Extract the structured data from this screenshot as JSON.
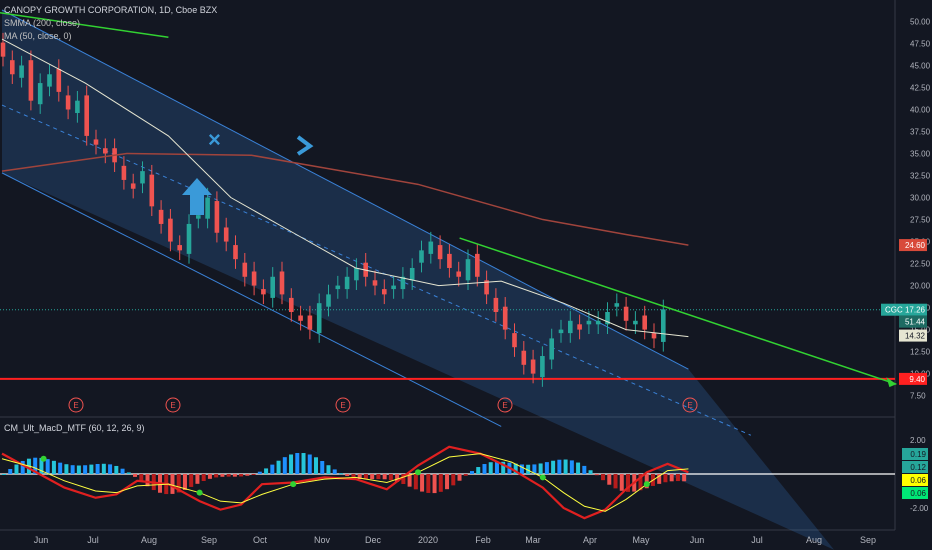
{
  "title": "CANOPY GROWTH CORPORATION, 1D, Cboe BZX",
  "indicators": [
    "SMMA (200, close)",
    "MA (50, close, 0)"
  ],
  "macd_label": "CM_Ult_MacD_MTF (60, 12, 26, 9)",
  "colors": {
    "background": "#131722",
    "up": "#26a69a",
    "down": "#ef5350",
    "smma": "#a0443c",
    "ma": "#e6e6d2",
    "channel": "#3a82d8",
    "trendline": "#32d232",
    "support": "#ff2020"
  },
  "chart_data": [
    {
      "type": "candlestick",
      "symbol": "CGC",
      "x_ticks": [
        "Jun",
        "Jul",
        "Aug",
        "Sep",
        "Oct",
        "Nov",
        "Dec",
        "2020",
        "Feb",
        "Mar",
        "Apr",
        "May",
        "Jun",
        "Jul",
        "Aug",
        "Sep"
      ],
      "y_ticks": [
        "50.00",
        "47.50",
        "45.00",
        "42.50",
        "40.00",
        "37.50",
        "35.00",
        "32.50",
        "30.00",
        "27.50",
        "25.00",
        "22.50",
        "20.00",
        "17.50",
        "15.00",
        "12.50",
        "10.00",
        "7.50"
      ],
      "ylim": [
        5.3,
        51.3
      ],
      "close_series": [
        [
          46,
          1
        ],
        [
          44,
          1
        ],
        [
          45,
          1
        ],
        [
          41,
          1
        ],
        [
          43,
          1
        ],
        [
          44,
          1
        ],
        [
          42,
          1
        ],
        [
          40,
          1
        ],
        [
          41,
          1
        ],
        [
          37,
          1
        ],
        [
          36,
          1
        ],
        [
          35,
          1
        ],
        [
          34,
          1
        ],
        [
          32,
          1
        ],
        [
          31,
          1
        ],
        [
          33,
          1
        ],
        [
          29,
          1
        ],
        [
          27,
          1
        ],
        [
          25,
          1
        ],
        [
          24,
          1
        ],
        [
          27,
          1
        ],
        [
          28,
          1
        ],
        [
          30,
          1
        ],
        [
          26,
          1
        ],
        [
          25,
          1
        ],
        [
          23,
          1
        ],
        [
          21,
          1
        ],
        [
          20,
          1
        ],
        [
          19,
          1
        ],
        [
          21,
          1
        ],
        [
          19,
          1
        ],
        [
          17,
          1
        ],
        [
          16,
          1
        ],
        [
          15,
          1
        ],
        [
          18,
          1
        ],
        [
          19,
          1
        ],
        [
          20,
          1
        ],
        [
          21,
          1
        ],
        [
          22,
          1
        ],
        [
          21,
          1
        ],
        [
          20,
          1
        ],
        [
          19,
          1
        ],
        [
          20,
          1
        ],
        [
          21,
          1
        ],
        [
          22,
          1
        ],
        [
          24,
          1
        ],
        [
          25,
          1
        ],
        [
          23,
          1
        ],
        [
          22,
          1
        ],
        [
          21,
          1
        ],
        [
          23,
          1
        ],
        [
          21,
          1
        ],
        [
          19,
          1
        ],
        [
          17,
          1
        ],
        [
          15,
          1
        ],
        [
          13,
          1
        ],
        [
          11,
          1
        ],
        [
          10,
          1
        ],
        [
          12,
          1
        ],
        [
          14,
          1
        ],
        [
          15,
          1
        ],
        [
          16,
          1
        ],
        [
          15,
          1
        ],
        [
          16,
          1
        ],
        [
          16,
          1
        ],
        [
          17,
          1
        ],
        [
          18,
          1
        ],
        [
          16,
          1
        ],
        [
          16,
          1
        ],
        [
          15,
          1
        ],
        [
          14,
          1
        ],
        [
          17.3,
          1
        ]
      ],
      "smma_200": [
        [
          0,
          33
        ],
        [
          60,
          35
        ],
        [
          120,
          34.8
        ],
        [
          200,
          31.5
        ],
        [
          260,
          27.5
        ],
        [
          300,
          25.8
        ],
        [
          330,
          24.6
        ]
      ],
      "ma_50": [
        [
          0,
          48
        ],
        [
          40,
          43
        ],
        [
          80,
          37
        ],
        [
          110,
          30
        ],
        [
          140,
          26
        ],
        [
          170,
          22
        ],
        [
          210,
          20
        ],
        [
          240,
          20.5
        ],
        [
          270,
          18
        ],
        [
          300,
          15
        ],
        [
          330,
          14.2
        ]
      ],
      "channel_upper": [
        [
          0,
          51.3
        ],
        [
          330,
          10.5
        ]
      ],
      "channel_middle": [
        [
          0,
          40.5
        ],
        [
          360,
          3
        ]
      ],
      "channel_lower": [
        [
          0,
          32.8
        ],
        [
          240,
          4
        ]
      ],
      "trendline": [
        [
          220,
          25.4
        ],
        [
          430,
          8.8
        ]
      ],
      "trendline_top": [
        [
          -10,
          51.3
        ],
        [
          80,
          48.2
        ]
      ],
      "support_level": 9.4,
      "earnings_markers": [
        "E",
        "E",
        "E",
        "E",
        "E"
      ],
      "annotations": [
        "×"
      ],
      "price_labels": [
        {
          "text": "24.60",
          "kind": "smma"
        },
        {
          "text": "CGC 17.26",
          "kind": "price"
        },
        {
          "text": "51.44",
          "kind": "dark"
        },
        {
          "text": "14.32",
          "kind": "ma"
        },
        {
          "text": "9.40",
          "kind": "support"
        }
      ]
    },
    {
      "type": "histogram",
      "name": "CM_Ult_MacD_MTF (60, 12, 26, 9)",
      "y_ticks": [
        "2.00",
        "-2.00"
      ],
      "ylim": [
        -3.3,
        3.3
      ],
      "zero_line": 0,
      "macd": [
        [
          0,
          1.2
        ],
        [
          15,
          0.2
        ],
        [
          30,
          -0.8
        ],
        [
          45,
          -1.4
        ],
        [
          55,
          -1.2
        ],
        [
          65,
          -0.4
        ],
        [
          80,
          -0.6
        ],
        [
          95,
          -1.6
        ],
        [
          105,
          -2.1
        ],
        [
          115,
          -1.8
        ],
        [
          125,
          -0.6
        ],
        [
          140,
          -0.5
        ],
        [
          155,
          -0.2
        ],
        [
          170,
          -0.3
        ],
        [
          185,
          -0.9
        ],
        [
          200,
          0.5
        ],
        [
          215,
          1.6
        ],
        [
          230,
          1.2
        ],
        [
          245,
          0.3
        ],
        [
          260,
          -0.8
        ],
        [
          270,
          -2.0
        ],
        [
          280,
          -2.6
        ],
        [
          290,
          -2.1
        ],
        [
          300,
          -0.9
        ],
        [
          310,
          0.1
        ],
        [
          320,
          0.6
        ],
        [
          330,
          0.1
        ]
      ],
      "signal": [
        [
          0,
          0.9
        ],
        [
          15,
          0.4
        ],
        [
          30,
          -0.4
        ],
        [
          45,
          -1.0
        ],
        [
          55,
          -1.1
        ],
        [
          65,
          -0.7
        ],
        [
          80,
          -0.6
        ],
        [
          95,
          -1.1
        ],
        [
          105,
          -1.6
        ],
        [
          115,
          -1.7
        ],
        [
          125,
          -1.2
        ],
        [
          140,
          -0.6
        ],
        [
          155,
          -0.3
        ],
        [
          170,
          -0.2
        ],
        [
          185,
          -0.5
        ],
        [
          200,
          0.1
        ],
        [
          215,
          1.0
        ],
        [
          230,
          1.2
        ],
        [
          245,
          0.7
        ],
        [
          260,
          -0.2
        ],
        [
          270,
          -1.1
        ],
        [
          280,
          -1.9
        ],
        [
          290,
          -2.2
        ],
        [
          300,
          -1.5
        ],
        [
          310,
          -0.6
        ],
        [
          320,
          0.2
        ],
        [
          330,
          0.3
        ]
      ],
      "value_labels": [
        {
          "text": "0.19",
          "bg": "#26a69a"
        },
        {
          "text": "0.12",
          "bg": "#26a69a"
        },
        {
          "text": "0.06",
          "bg": "#ffff00"
        },
        {
          "text": "0.06",
          "bg": "#00e676"
        }
      ]
    }
  ]
}
